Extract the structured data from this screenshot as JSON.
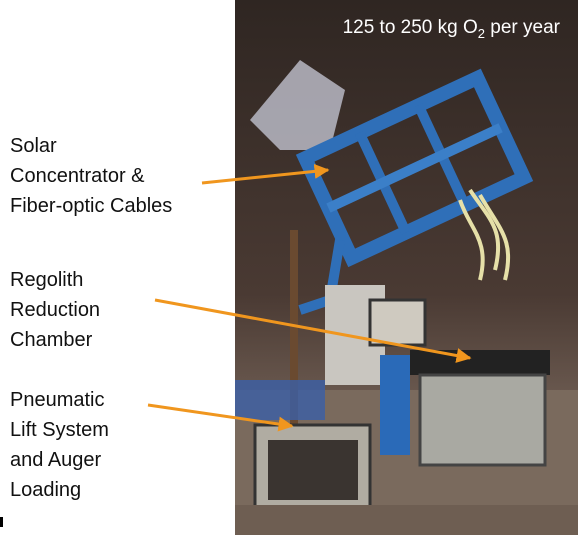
{
  "caption": {
    "before": "125 to 250 kg O",
    "subscript": "2",
    "after": " per year"
  },
  "labels": [
    {
      "lines": [
        "Solar",
        "Concentrator &",
        "Fiber-optic Cables"
      ]
    },
    {
      "lines": [
        "Regolith",
        "Reduction",
        "Chamber"
      ]
    },
    {
      "lines": [
        "Pneumatic",
        "Lift System",
        "and Auger",
        "Loading"
      ]
    }
  ]
}
